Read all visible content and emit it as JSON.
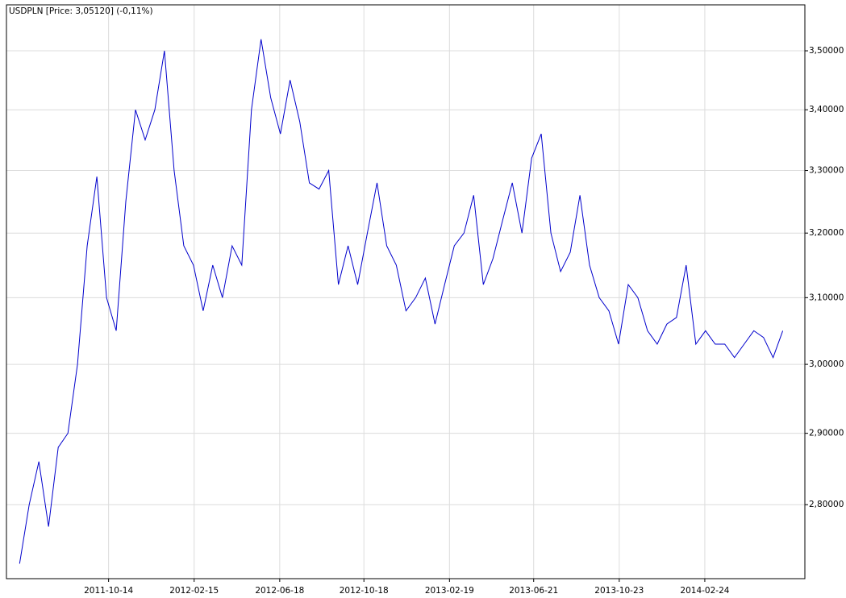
{
  "chart_data": {
    "type": "line",
    "title": "USDPLN [Price: 3,05120] (-0,11%)",
    "x": [
      "2011-06-07",
      "2011-06-21",
      "2011-07-05",
      "2011-07-19",
      "2011-08-02",
      "2011-08-16",
      "2011-08-30",
      "2011-09-13",
      "2011-09-27",
      "2011-10-11",
      "2011-10-25",
      "2011-11-08",
      "2011-11-22",
      "2011-12-06",
      "2011-12-20",
      "2012-01-03",
      "2012-01-17",
      "2012-01-31",
      "2012-02-14",
      "2012-02-28",
      "2012-03-13",
      "2012-03-27",
      "2012-04-10",
      "2012-04-24",
      "2012-05-08",
      "2012-05-22",
      "2012-06-05",
      "2012-06-19",
      "2012-07-03",
      "2012-07-17",
      "2012-07-31",
      "2012-08-14",
      "2012-08-28",
      "2012-09-11",
      "2012-09-25",
      "2012-10-09",
      "2012-10-23",
      "2012-11-06",
      "2012-11-20",
      "2012-12-04",
      "2012-12-18",
      "2013-01-01",
      "2013-01-15",
      "2013-01-29",
      "2013-02-12",
      "2013-02-26",
      "2013-03-12",
      "2013-03-26",
      "2013-04-09",
      "2013-04-23",
      "2013-05-07",
      "2013-05-21",
      "2013-06-04",
      "2013-06-18",
      "2013-07-02",
      "2013-07-16",
      "2013-07-30",
      "2013-08-13",
      "2013-08-27",
      "2013-09-10",
      "2013-09-24",
      "2013-10-08",
      "2013-10-22",
      "2013-11-05",
      "2013-11-19",
      "2013-12-03",
      "2013-12-17",
      "2013-12-31",
      "2014-01-14",
      "2014-01-28",
      "2014-02-11",
      "2014-02-25",
      "2014-03-11",
      "2014-03-25",
      "2014-04-08",
      "2014-04-22",
      "2014-05-06",
      "2014-05-20",
      "2014-06-03",
      "2014-06-17"
    ],
    "values": [
      2.72,
      2.8,
      2.86,
      2.77,
      2.88,
      2.9,
      3.0,
      3.18,
      3.29,
      3.1,
      3.05,
      3.25,
      3.4,
      3.35,
      3.4,
      3.5,
      3.3,
      3.18,
      3.15,
      3.08,
      3.15,
      3.1,
      3.18,
      3.15,
      3.4,
      3.52,
      3.42,
      3.36,
      3.45,
      3.38,
      3.28,
      3.27,
      3.3,
      3.12,
      3.18,
      3.12,
      3.2,
      3.28,
      3.18,
      3.15,
      3.08,
      3.1,
      3.13,
      3.06,
      3.12,
      3.18,
      3.2,
      3.26,
      3.12,
      3.16,
      3.22,
      3.28,
      3.2,
      3.32,
      3.36,
      3.2,
      3.14,
      3.17,
      3.26,
      3.15,
      3.1,
      3.08,
      3.03,
      3.12,
      3.1,
      3.05,
      3.03,
      3.06,
      3.07,
      3.15,
      3.03,
      3.05,
      3.03,
      3.03,
      3.01,
      3.03,
      3.05,
      3.04,
      3.01,
      3.05
    ],
    "color": "#0000cc",
    "xlim": [
      "2011-05-19",
      "2014-07-19"
    ],
    "xticks": [
      "2011-10-14",
      "2012-02-15",
      "2012-06-18",
      "2012-10-18",
      "2013-02-19",
      "2013-06-21",
      "2013-10-23",
      "2014-02-24"
    ],
    "ylim": [
      2.7,
      3.58
    ],
    "yticks": [
      {
        "value": 2.8,
        "label": "2,80000"
      },
      {
        "value": 2.9,
        "label": "2,90000"
      },
      {
        "value": 3.0,
        "label": "3,00000"
      },
      {
        "value": 3.1,
        "label": "3,10000"
      },
      {
        "value": 3.2,
        "label": "3,20000"
      },
      {
        "value": 3.3,
        "label": "3,30000"
      },
      {
        "value": 3.4,
        "label": "3,40000"
      },
      {
        "value": 3.5,
        "label": "3,50000"
      }
    ],
    "log_scale_y": true,
    "grid": true
  }
}
